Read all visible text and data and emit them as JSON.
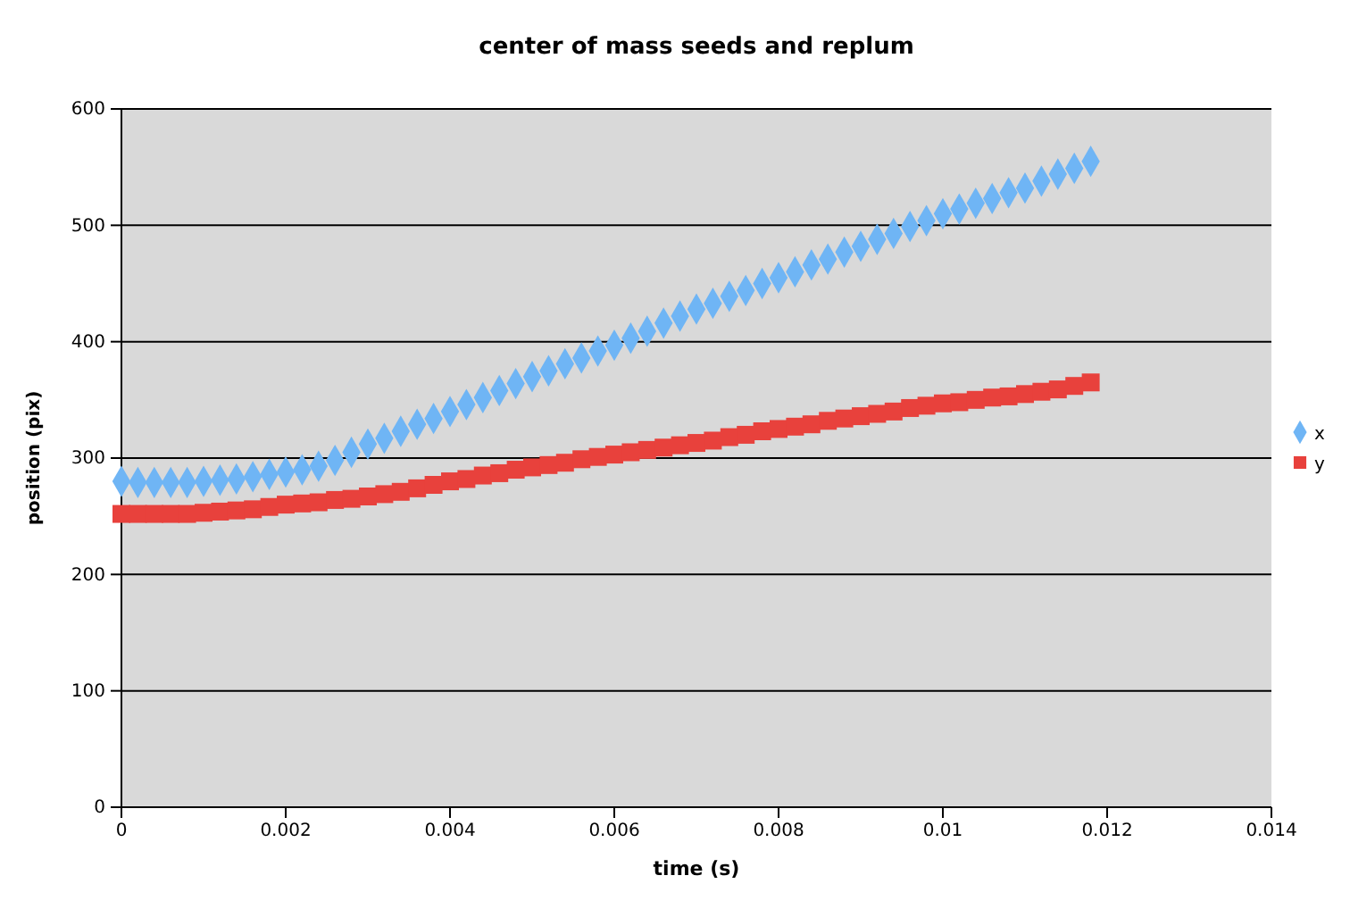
{
  "chart_data": {
    "type": "scatter",
    "title": "center of mass seeds and replum",
    "xlabel": "time (s)",
    "ylabel": "position (pix)",
    "x": [
      0,
      0.0002,
      0.0004,
      0.0006,
      0.0008,
      0.001,
      0.0012,
      0.0014,
      0.0016,
      0.0018,
      0.002,
      0.0022,
      0.0024,
      0.0026,
      0.0028,
      0.003,
      0.0032,
      0.0034,
      0.0036,
      0.0038,
      0.004,
      0.0042,
      0.0044,
      0.0046,
      0.0048,
      0.005,
      0.0052,
      0.0054,
      0.0056,
      0.0058,
      0.006,
      0.0062,
      0.0064,
      0.0066,
      0.0068,
      0.007,
      0.0072,
      0.0074,
      0.0076,
      0.0078,
      0.008,
      0.0082,
      0.0084,
      0.0086,
      0.0088,
      0.009,
      0.0092,
      0.0094,
      0.0096,
      0.0098,
      0.01,
      0.0102,
      0.0104,
      0.0106,
      0.0108,
      0.011,
      0.0112,
      0.0114,
      0.0116,
      0.0118
    ],
    "series": [
      {
        "name": "x",
        "color": "#6fb5f5",
        "marker": "diamond",
        "values": [
          280,
          279,
          279,
          279,
          279,
          280,
          281,
          282,
          284,
          286,
          288,
          290,
          293,
          298,
          305,
          312,
          317,
          323,
          329,
          334,
          340,
          346,
          352,
          358,
          364,
          370,
          375,
          381,
          386,
          392,
          397,
          403,
          409,
          416,
          422,
          428,
          433,
          439,
          444,
          450,
          455,
          460,
          466,
          471,
          477,
          482,
          488,
          493,
          499,
          504,
          510,
          514,
          519,
          523,
          528,
          532,
          538,
          544,
          549,
          555
        ]
      },
      {
        "name": "y",
        "color": "#e8413c",
        "marker": "square",
        "values": [
          252,
          252,
          252,
          252,
          252,
          253,
          254,
          255,
          256,
          258,
          260,
          261,
          262,
          264,
          265,
          267,
          269,
          271,
          274,
          277,
          280,
          282,
          285,
          287,
          290,
          292,
          294,
          296,
          299,
          301,
          303,
          305,
          307,
          309,
          311,
          313,
          315,
          318,
          320,
          323,
          325,
          327,
          329,
          332,
          334,
          336,
          338,
          340,
          343,
          345,
          347,
          348,
          350,
          352,
          353,
          355,
          357,
          359,
          362,
          365
        ]
      }
    ],
    "xlim": [
      0,
      0.014
    ],
    "xticks": [
      0,
      0.002,
      0.004,
      0.006,
      0.008,
      0.01,
      0.012,
      0.014
    ],
    "ylim": [
      0,
      600
    ],
    "yticks": [
      0,
      100,
      200,
      300,
      400,
      500,
      600
    ],
    "grid": "y",
    "legend": "right"
  }
}
